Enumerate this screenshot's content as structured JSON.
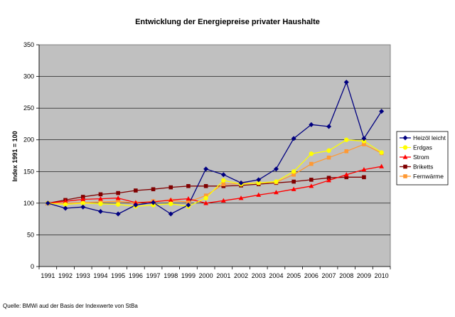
{
  "chart_data": {
    "type": "line",
    "title": "Entwicklung der Energiepreise privater Haushalte",
    "xlabel": "",
    "ylabel": "Index 1991 = 100",
    "ylim": [
      0,
      350
    ],
    "yticks": [
      0,
      50,
      100,
      150,
      200,
      250,
      300,
      350
    ],
    "grid": true,
    "legend": "right",
    "categories": [
      "1991",
      "1992",
      "1993",
      "1994",
      "1995",
      "1996",
      "1997",
      "1998",
      "1999",
      "2000",
      "2001",
      "2002",
      "2003",
      "2004",
      "2005",
      "2006",
      "2007",
      "2008",
      "2009",
      "2010"
    ],
    "series": [
      {
        "name": "Heizöl leicht",
        "color": "#000080",
        "marker": "diamond",
        "values": [
          100,
          92,
          94,
          87,
          83,
          97,
          101,
          83,
          97,
          154,
          145,
          132,
          137,
          154,
          202,
          224,
          221,
          291,
          202,
          245
        ]
      },
      {
        "name": "Erdgas",
        "color": "#ffff00",
        "marker": "circle",
        "values": [
          100,
          98,
          100,
          99,
          98,
          95,
          97,
          99,
          95,
          108,
          136,
          130,
          132,
          134,
          150,
          178,
          183,
          200,
          198,
          180
        ]
      },
      {
        "name": "Strom",
        "color": "#ff0000",
        "marker": "triangle",
        "values": [
          100,
          103,
          106,
          107,
          108,
          101,
          102,
          105,
          107,
          100,
          104,
          108,
          113,
          117,
          122,
          127,
          136,
          145,
          153,
          158
        ]
      },
      {
        "name": "Briketts",
        "color": "#800000",
        "marker": "square",
        "values": [
          100,
          105,
          110,
          114,
          116,
          120,
          122,
          125,
          127,
          127,
          127,
          128,
          130,
          132,
          134,
          137,
          140,
          141,
          141,
          null
        ]
      },
      {
        "name": "Fernwärme",
        "color": "#ff9933",
        "marker": "square",
        "values": [
          100,
          100,
          101,
          102,
          103,
          100,
          103,
          104,
          102,
          112,
          130,
          131,
          132,
          133,
          145,
          162,
          172,
          182,
          193,
          179
        ]
      }
    ]
  },
  "source": "Quelle: BMWi aud der Basis der Indexwerte von StBa"
}
